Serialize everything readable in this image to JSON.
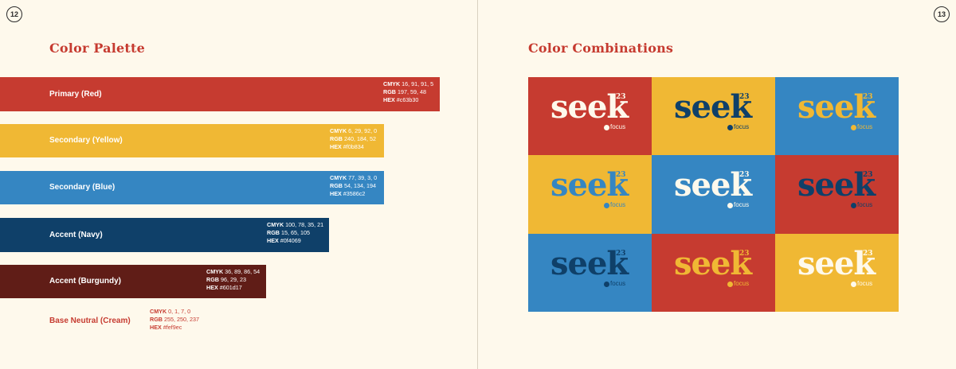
{
  "pages": {
    "left_number": "12",
    "right_number": "13"
  },
  "palette": {
    "title": "Color Palette",
    "swatches": [
      {
        "name": "Primary (Red)",
        "cmyk_label": "CMYK",
        "cmyk": "16, 91, 91, 5",
        "rgb_label": "RGB",
        "rgb": "197, 59, 48",
        "hex_label": "HEX",
        "hex": "#c63b30",
        "color": "#c63b30",
        "text_color": "#ffffff"
      },
      {
        "name": "Secondary (Yellow)",
        "cmyk_label": "CMYK",
        "cmyk": "6, 29, 92, 0",
        "rgb_label": "RGB",
        "rgb": "240, 184, 52",
        "hex_label": "HEX",
        "hex": "#f0b834",
        "color": "#f0b834",
        "text_color": "#ffffff"
      },
      {
        "name": "Secondary (Blue)",
        "cmyk_label": "CMYK",
        "cmyk": "77, 39, 3, 0",
        "rgb_label": "RGB",
        "rgb": "54, 134, 194",
        "hex_label": "HEX",
        "hex": "#3586c2",
        "color": "#3586c2",
        "text_color": "#ffffff"
      },
      {
        "name": "Accent (Navy)",
        "cmyk_label": "CMYK",
        "cmyk": "100, 78, 35, 21",
        "rgb_label": "RGB",
        "rgb": "15, 65, 105",
        "hex_label": "HEX",
        "hex": "#0f4069",
        "color": "#0f4069",
        "text_color": "#ffffff"
      },
      {
        "name": "Accent (Burgundy)",
        "cmyk_label": "CMYK",
        "cmyk": "36, 89, 86, 54",
        "rgb_label": "RGB",
        "rgb": "96, 29, 23",
        "hex_label": "HEX",
        "hex": "#601d17",
        "color": "#601d17",
        "text_color": "#ffffff"
      },
      {
        "name": "Base Neutral (Cream)",
        "cmyk_label": "CMYK",
        "cmyk": "0, 1, 7, 0",
        "rgb_label": "RGB",
        "rgb": "255, 250, 237",
        "hex_label": "HEX",
        "hex": "#fef9ec",
        "color": "#fef9ec",
        "text_color": "#c63b30"
      }
    ]
  },
  "combinations": {
    "title": "Color Combinations",
    "logo": {
      "word": "seek",
      "year": "23",
      "sub": "focus"
    },
    "tiles": [
      {
        "bg": "#c63b30",
        "fg": "#fef9ec"
      },
      {
        "bg": "#f0b834",
        "fg": "#0f4069"
      },
      {
        "bg": "#3586c2",
        "fg": "#f0b834"
      },
      {
        "bg": "#f0b834",
        "fg": "#3586c2"
      },
      {
        "bg": "#3586c2",
        "fg": "#fef9ec"
      },
      {
        "bg": "#c63b30",
        "fg": "#0f4069"
      },
      {
        "bg": "#3586c2",
        "fg": "#0f4069"
      },
      {
        "bg": "#c63b30",
        "fg": "#f0b834"
      },
      {
        "bg": "#f0b834",
        "fg": "#fef9ec"
      }
    ]
  }
}
